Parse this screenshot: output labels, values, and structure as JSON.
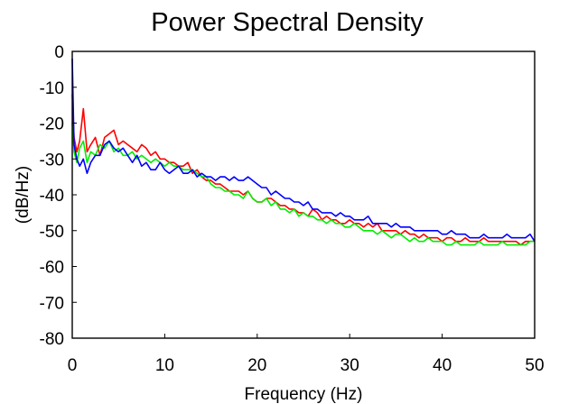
{
  "chart_data": {
    "type": "line",
    "title": "Power Spectral Density",
    "xlabel": "Frequency (Hz)",
    "ylabel": "(dB/Hz)",
    "xlim": [
      0,
      50
    ],
    "ylim": [
      -80,
      0
    ],
    "x_ticks": [
      0,
      10,
      20,
      30,
      40,
      50
    ],
    "y_ticks": [
      0,
      -10,
      -20,
      -30,
      -40,
      -50,
      -60,
      -70,
      -80
    ],
    "grid": false,
    "legend": "none",
    "series": [
      {
        "color": "#ff0000",
        "x": [
          0,
          0.2,
          0.5,
          0.8,
          1.2,
          1.6,
          2.0,
          2.5,
          3.0,
          3.5,
          4.0,
          4.5,
          5.0,
          5.5,
          6.0,
          6.5,
          7.0,
          7.5,
          8.0,
          8.5,
          9.0,
          9.5,
          10.0,
          10.5,
          11.0,
          11.5,
          12.0,
          12.5,
          13.0,
          13.5,
          14.0,
          14.5,
          15.0,
          15.5,
          16.0,
          16.5,
          17.0,
          17.5,
          18.0,
          18.5,
          19.0,
          19.5,
          20.0,
          20.5,
          21.0,
          21.5,
          22.0,
          22.5,
          23.0,
          23.5,
          24.0,
          24.5,
          25.0,
          25.5,
          26.0,
          26.5,
          27.0,
          27.5,
          28.0,
          28.5,
          29.0,
          29.5,
          30.0,
          30.5,
          31.0,
          31.5,
          32.0,
          32.5,
          33.0,
          33.5,
          34.0,
          34.5,
          35.0,
          35.5,
          36.0,
          36.5,
          37.0,
          37.5,
          38.0,
          38.5,
          39.0,
          39.5,
          40.0,
          40.5,
          41.0,
          41.5,
          42.0,
          42.5,
          43.0,
          43.5,
          44.0,
          44.5,
          45.0,
          45.5,
          46.0,
          46.5,
          47.0,
          47.5,
          48.0,
          48.5,
          49.0,
          49.5,
          50.0
        ],
        "values": [
          -12,
          -24,
          -28,
          -25,
          -16,
          -28,
          -26,
          -24,
          -29,
          -24,
          -23,
          -22,
          -26,
          -25,
          -26,
          -27,
          -28,
          -26,
          -27,
          -29,
          -28,
          -30,
          -30,
          -31,
          -31,
          -32,
          -32,
          -31,
          -34,
          -33,
          -35,
          -36,
          -36,
          -37,
          -37,
          -38,
          -39,
          -39,
          -39,
          -40,
          -39,
          -41,
          -42,
          -42,
          -41,
          -41,
          -42,
          -43,
          -43,
          -44,
          -44,
          -45,
          -45,
          -46,
          -44,
          -45,
          -47,
          -46,
          -47,
          -47,
          -48,
          -48,
          -47,
          -48,
          -48,
          -49,
          -48,
          -49,
          -48,
          -50,
          -50,
          -50,
          -50,
          -51,
          -50,
          -51,
          -51,
          -52,
          -51,
          -52,
          -52,
          -52,
          -53,
          -52,
          -52,
          -53,
          -53,
          -52,
          -53,
          -53,
          -53,
          -52,
          -53,
          -53,
          -53,
          -53,
          -53,
          -53,
          -53,
          -54,
          -53,
          -53,
          -53
        ]
      },
      {
        "color": "#00ee00",
        "x": [
          0,
          0.2,
          0.5,
          0.8,
          1.2,
          1.6,
          2.0,
          2.5,
          3.0,
          3.5,
          4.0,
          4.5,
          5.0,
          5.5,
          6.0,
          6.5,
          7.0,
          7.5,
          8.0,
          8.5,
          9.0,
          9.5,
          10.0,
          10.5,
          11.0,
          11.5,
          12.0,
          12.5,
          13.0,
          13.5,
          14.0,
          14.5,
          15.0,
          15.5,
          16.0,
          16.5,
          17.0,
          17.5,
          18.0,
          18.5,
          19.0,
          19.5,
          20.0,
          20.5,
          21.0,
          21.5,
          22.0,
          22.5,
          23.0,
          23.5,
          24.0,
          24.5,
          25.0,
          25.5,
          26.0,
          26.5,
          27.0,
          27.5,
          28.0,
          28.5,
          29.0,
          29.5,
          30.0,
          30.5,
          31.0,
          31.5,
          32.0,
          32.5,
          33.0,
          33.5,
          34.0,
          34.5,
          35.0,
          35.5,
          36.0,
          36.5,
          37.0,
          37.5,
          38.0,
          38.5,
          39.0,
          39.5,
          40.0,
          40.5,
          41.0,
          41.5,
          42.0,
          42.5,
          43.0,
          43.5,
          44.0,
          44.5,
          45.0,
          45.5,
          46.0,
          46.5,
          47.0,
          47.5,
          48.0,
          48.5,
          49.0,
          49.5,
          50.0
        ],
        "values": [
          -20,
          -28,
          -31,
          -27,
          -25,
          -31,
          -28,
          -29,
          -26,
          -27,
          -25,
          -28,
          -27,
          -29,
          -29,
          -28,
          -30,
          -29,
          -30,
          -31,
          -30,
          -31,
          -32,
          -31,
          -32,
          -32,
          -33,
          -33,
          -33,
          -34,
          -35,
          -35,
          -37,
          -38,
          -38,
          -39,
          -39,
          -40,
          -40,
          -41,
          -39,
          -41,
          -42,
          -42,
          -41,
          -43,
          -42,
          -44,
          -44,
          -45,
          -44,
          -46,
          -45,
          -46,
          -46,
          -47,
          -47,
          -48,
          -47,
          -48,
          -48,
          -49,
          -49,
          -48,
          -49,
          -50,
          -50,
          -50,
          -51,
          -50,
          -51,
          -52,
          -51,
          -51,
          -52,
          -53,
          -52,
          -53,
          -53,
          -52,
          -53,
          -53,
          -53,
          -54,
          -54,
          -53,
          -54,
          -54,
          -54,
          -54,
          -53,
          -54,
          -54,
          -54,
          -54,
          -53,
          -54,
          -54,
          -54,
          -54,
          -54,
          -53,
          -53
        ]
      },
      {
        "color": "#0000ff",
        "x": [
          0,
          0.2,
          0.5,
          0.8,
          1.2,
          1.6,
          2.0,
          2.5,
          3.0,
          3.5,
          4.0,
          4.5,
          5.0,
          5.5,
          6.0,
          6.5,
          7.0,
          7.5,
          8.0,
          8.5,
          9.0,
          9.5,
          10.0,
          10.5,
          11.0,
          11.5,
          12.0,
          12.5,
          13.0,
          13.5,
          14.0,
          14.5,
          15.0,
          15.5,
          16.0,
          16.5,
          17.0,
          17.5,
          18.0,
          18.5,
          19.0,
          19.5,
          20.0,
          20.5,
          21.0,
          21.5,
          22.0,
          22.5,
          23.0,
          23.5,
          24.0,
          24.5,
          25.0,
          25.5,
          26.0,
          26.5,
          27.0,
          27.5,
          28.0,
          28.5,
          29.0,
          29.5,
          30.0,
          30.5,
          31.0,
          31.5,
          32.0,
          32.5,
          33.0,
          33.5,
          34.0,
          34.5,
          35.0,
          35.5,
          36.0,
          36.5,
          37.0,
          37.5,
          38.0,
          38.5,
          39.0,
          39.5,
          40.0,
          40.5,
          41.0,
          41.5,
          42.0,
          42.5,
          43.0,
          43.5,
          44.0,
          44.5,
          45.0,
          45.5,
          46.0,
          46.5,
          47.0,
          47.5,
          48.0,
          48.5,
          49.0,
          49.5,
          50.0
        ],
        "values": [
          -2,
          -26,
          -30,
          -32,
          -30,
          -34,
          -31,
          -29,
          -29,
          -26,
          -25,
          -27,
          -28,
          -27,
          -29,
          -31,
          -29,
          -32,
          -31,
          -33,
          -33,
          -31,
          -33,
          -34,
          -33,
          -32,
          -34,
          -34,
          -33,
          -35,
          -34,
          -35,
          -35,
          -36,
          -35,
          -35,
          -36,
          -35,
          -36,
          -36,
          -35,
          -36,
          -37,
          -38,
          -38,
          -40,
          -39,
          -40,
          -41,
          -41,
          -42,
          -42,
          -43,
          -42,
          -44,
          -44,
          -45,
          -45,
          -45,
          -46,
          -45,
          -46,
          -46,
          -47,
          -47,
          -47,
          -46,
          -48,
          -48,
          -48,
          -48,
          -49,
          -48,
          -49,
          -49,
          -49,
          -50,
          -50,
          -50,
          -50,
          -50,
          -50,
          -51,
          -51,
          -50,
          -51,
          -51,
          -51,
          -52,
          -52,
          -52,
          -51,
          -52,
          -52,
          -52,
          -52,
          -51,
          -52,
          -52,
          -52,
          -52,
          -51,
          -53
        ]
      }
    ]
  }
}
